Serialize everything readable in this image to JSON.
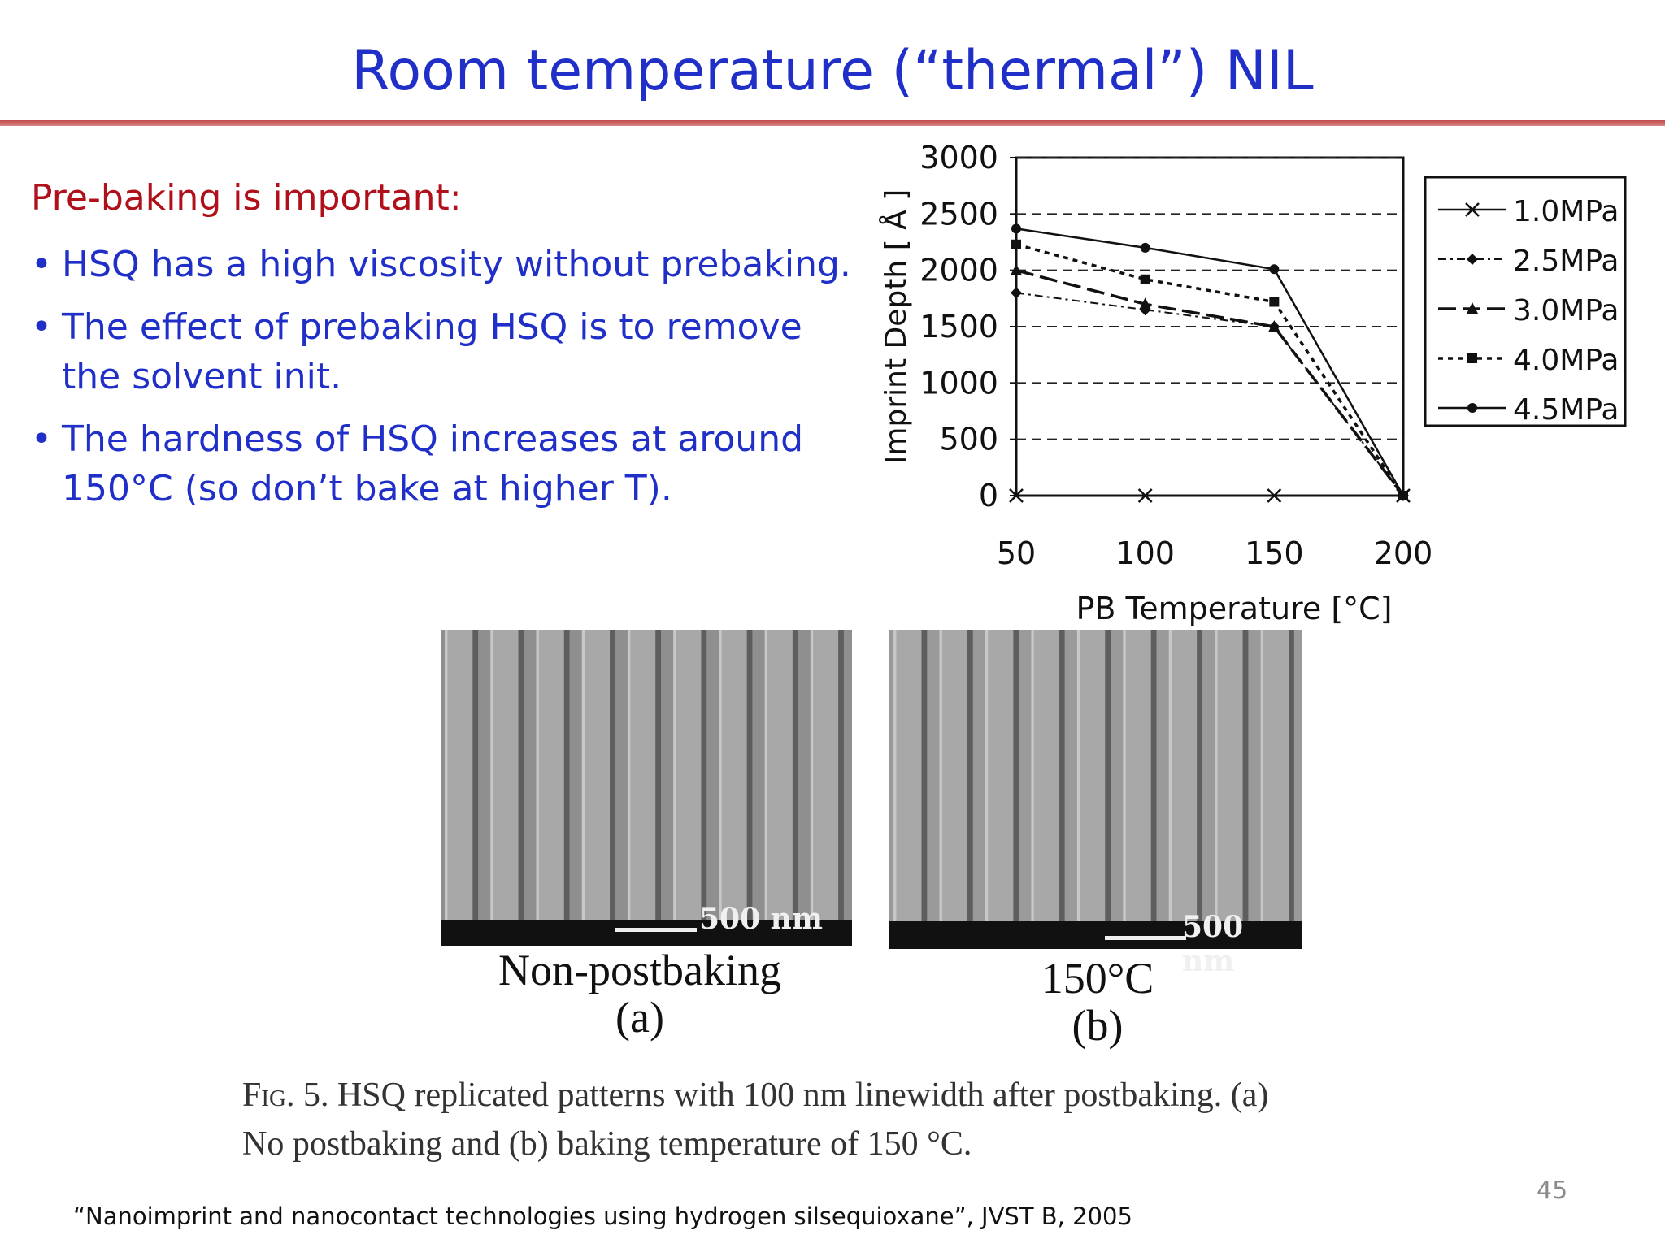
{
  "slide": {
    "title": "Room temperature (“thermal”) NIL",
    "lead": "Pre-baking is important:",
    "bullets": [
      {
        "line1": "HSQ has a high viscosity without prebaking.",
        "line2": ""
      },
      {
        "line1": "The effect of prebaking HSQ is to remove",
        "line2": "the solvent init."
      },
      {
        "line1": "The hardness of HSQ increases at around",
        "line2": "150°C (so don’t bake at higher T)."
      }
    ],
    "bullet_symbol": "•",
    "page_number": "45",
    "reference": "“Nanoimprint and nanocontact technologies using hydrogen silsequioxane”, JVST B, 2005"
  },
  "figure": {
    "image_a": {
      "scale_label": "500 nm",
      "label_line1": "Non-postbaking",
      "label_line2": "(a)"
    },
    "image_b": {
      "scale_label": "500 nm",
      "label_line1": "150°C",
      "label_line2": "(b)"
    },
    "caption_fig": "Fig.",
    "caption_line1": " 5. HSQ replicated patterns with 100 nm linewidth after postbaking. (a)",
    "caption_line2": "No postbaking and (b) baking temperature of 150 °C."
  },
  "chart_data": {
    "type": "line",
    "xlabel": "PB Temperature [°C]",
    "ylabel": "Imprint Depth [ Å ]",
    "x": [
      50,
      100,
      150,
      200
    ],
    "xlim": [
      50,
      200
    ],
    "ylim": [
      0,
      3000
    ],
    "x_ticks": [
      "50",
      "100",
      "150",
      "200"
    ],
    "y_ticks": [
      "0",
      "500",
      "1000",
      "1500",
      "2000",
      "2500",
      "3000"
    ],
    "grid": "horizontal dashed",
    "legend_position": "right",
    "series": [
      {
        "name": "1.0MPa",
        "values": [
          0,
          0,
          0,
          0
        ],
        "marker": "x",
        "dash": "solid"
      },
      {
        "name": "2.5MPa",
        "values": [
          1800,
          1650,
          1500,
          0
        ],
        "marker": "diamond",
        "dash": "dash-dot"
      },
      {
        "name": "3.0MPa",
        "values": [
          2000,
          1700,
          1500,
          0
        ],
        "marker": "triangle",
        "dash": "long-dash"
      },
      {
        "name": "4.0MPa",
        "values": [
          2230,
          1920,
          1720,
          0
        ],
        "marker": "square",
        "dash": "dotted"
      },
      {
        "name": "4.5MPa",
        "values": [
          2370,
          2200,
          2010,
          0
        ],
        "marker": "circle",
        "dash": "solid"
      }
    ]
  }
}
